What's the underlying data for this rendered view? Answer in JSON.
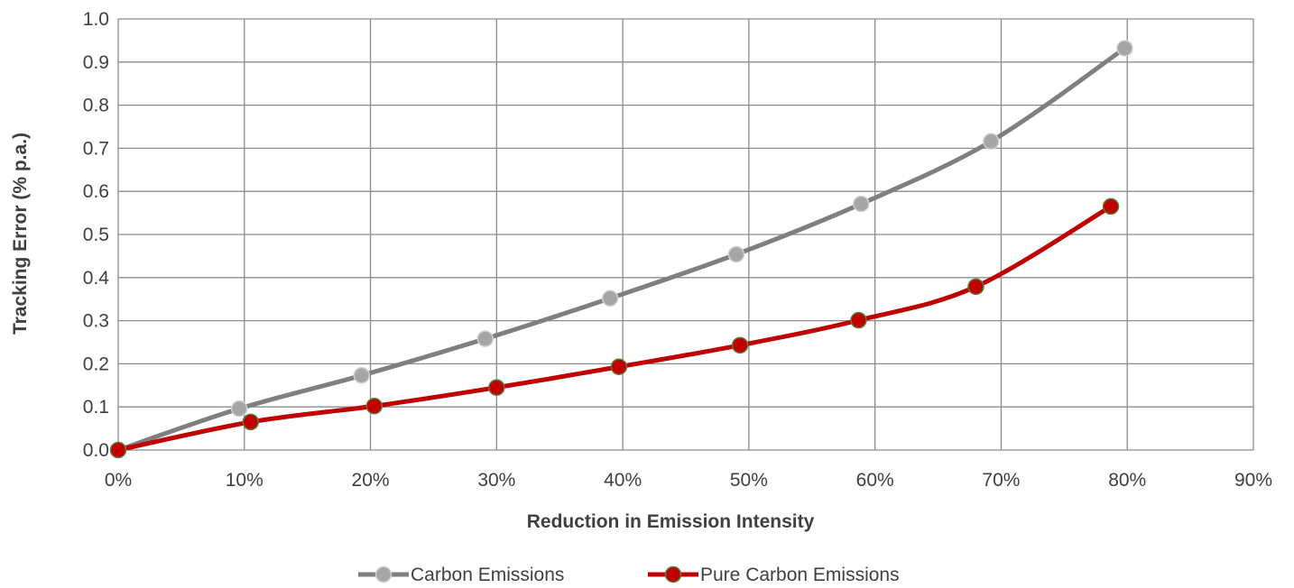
{
  "chart_data": {
    "type": "line",
    "title": "",
    "xlabel": "Reduction in Emission Intensity",
    "ylabel": "Tracking Error (% p.a.)",
    "xlim": [
      0,
      90
    ],
    "ylim": [
      0,
      1.0
    ],
    "x_ticks": [
      "0%",
      "10%",
      "20%",
      "30%",
      "40%",
      "50%",
      "60%",
      "70%",
      "80%",
      "90%"
    ],
    "x_tick_values": [
      0,
      10,
      20,
      30,
      40,
      50,
      60,
      70,
      80,
      90
    ],
    "y_ticks": [
      "0.0",
      "0.1",
      "0.2",
      "0.3",
      "0.4",
      "0.5",
      "0.6",
      "0.7",
      "0.8",
      "0.9",
      "1.0"
    ],
    "y_tick_values": [
      0,
      0.1,
      0.2,
      0.3,
      0.4,
      0.5,
      0.6,
      0.7,
      0.8,
      0.9,
      1.0
    ],
    "grid": true,
    "legend_position": "bottom",
    "series": [
      {
        "name": "Carbon Emissions",
        "color": "#7f7f7f",
        "marker_color": "#a6a6a6",
        "x": [
          0,
          9.6,
          19.3,
          29.1,
          39.0,
          49.0,
          58.9,
          69.2,
          79.8
        ],
        "y": [
          0.0,
          0.096,
          0.173,
          0.258,
          0.352,
          0.454,
          0.571,
          0.716,
          0.932
        ]
      },
      {
        "name": "Pure Carbon Emissions",
        "color": "#c00000",
        "marker_color": "#c00000",
        "x": [
          0,
          10.5,
          20.3,
          30.0,
          39.7,
          49.3,
          58.7,
          68.0,
          78.7
        ],
        "y": [
          0.0,
          0.065,
          0.102,
          0.145,
          0.193,
          0.243,
          0.301,
          0.379,
          0.565
        ]
      }
    ]
  }
}
